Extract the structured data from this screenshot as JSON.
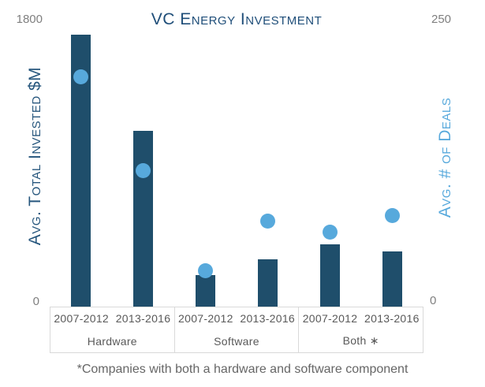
{
  "title": "VC Energy Investment",
  "footnote": "*Companies with both a hardware and software component",
  "left_axis": {
    "label": "Avg. Total Invested $M",
    "max_tick": "1800",
    "min_tick": "0"
  },
  "right_axis": {
    "label": "Avg. # of Deals",
    "max_tick": "250",
    "min_tick": "0"
  },
  "colors": {
    "bar": "#1F4E6B",
    "marker": "#57A9DC",
    "title": "#1F4E79",
    "left_axis_label": "#26567D",
    "right_axis_label": "#57A9DC",
    "tick": "#7F7F7F",
    "category_text": "#595959",
    "grid_line": "#D9D9D9",
    "footnote_text": "#666666"
  },
  "chart_data": {
    "type": "bar",
    "subtype": "combo-bar-and-scatter",
    "title": "VC Energy Investment",
    "categories": [
      "Hardware 2007-2012",
      "Hardware 2013-2016",
      "Software 2007-2012",
      "Software 2013-2016",
      "Both 2007-2012",
      "Both 2013-2016"
    ],
    "groups": [
      {
        "label": "Hardware",
        "years": [
          "2007-2012",
          "2013-2016"
        ]
      },
      {
        "label": "Software",
        "years": [
          "2007-2012",
          "2013-2016"
        ]
      },
      {
        "label": "Both ∗",
        "years": [
          "2007-2012",
          "2013-2016"
        ]
      }
    ],
    "series": [
      {
        "name": "Avg. Total Invested $M",
        "type": "bar",
        "axis": "left",
        "values": [
          1700,
          1100,
          195,
          295,
          390,
          345
        ]
      },
      {
        "name": "Avg. # of Deals",
        "type": "scatter",
        "axis": "right",
        "values": [
          200,
          118,
          31,
          74,
          65,
          79
        ]
      }
    ],
    "left_ylabel": "Avg. Total Invested $M",
    "right_ylabel": "Avg. # of Deals",
    "left_ylim": [
      0,
      1800
    ],
    "right_ylim": [
      0,
      250
    ],
    "grid": "off",
    "legend": "none",
    "annotation": "*Companies with both a hardware and software component"
  }
}
